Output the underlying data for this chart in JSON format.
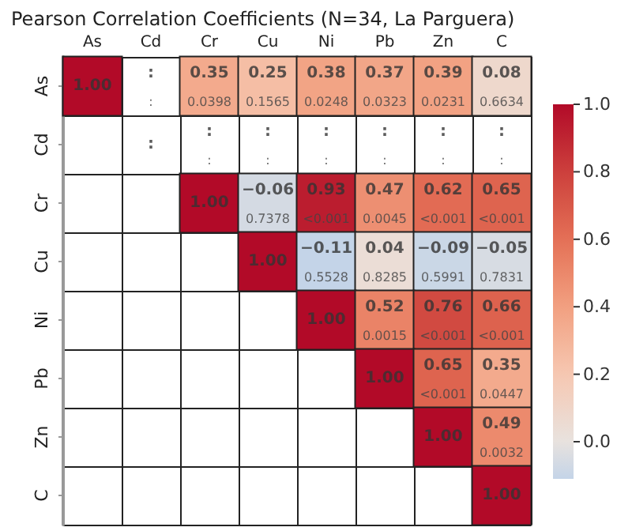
{
  "chart_data": {
    "type": "heatmap",
    "title": "Pearson Correlation Coefficients (N=34, La Parguera)",
    "categories": [
      "As",
      "Cd",
      "Cr",
      "Cu",
      "Ni",
      "Pb",
      "Zn",
      "C"
    ],
    "y_categories": [
      "As",
      "Cd",
      "Cr",
      "Cu",
      "Ni",
      "Pb",
      "Zn",
      "C"
    ],
    "cells": [
      [
        1.0,
        null,
        0.35,
        0.25,
        0.38,
        0.37,
        0.39,
        0.08
      ],
      [
        null,
        null,
        null,
        null,
        null,
        null,
        null,
        null
      ],
      [
        null,
        null,
        1.0,
        -0.06,
        0.93,
        0.47,
        0.62,
        0.65
      ],
      [
        null,
        null,
        null,
        1.0,
        -0.11,
        0.04,
        -0.09,
        -0.05
      ],
      [
        null,
        null,
        null,
        null,
        1.0,
        0.52,
        0.76,
        0.66
      ],
      [
        null,
        null,
        null,
        null,
        null,
        1.0,
        0.65,
        0.35
      ],
      [
        null,
        null,
        null,
        null,
        null,
        null,
        1.0,
        0.49
      ],
      [
        null,
        null,
        null,
        null,
        null,
        null,
        null,
        1.0
      ]
    ],
    "cell_labels": [
      [
        "1.00",
        ":\n:",
        "0.35\n0.0398",
        "0.25\n0.1565",
        "0.38\n0.0248",
        "0.37\n0.0323",
        "0.39\n0.0231",
        "0.08\n0.6634"
      ],
      [
        null,
        ":",
        ":\n:",
        ":\n:",
        ":\n:",
        ":\n:",
        ":\n:",
        ":\n:"
      ],
      [
        null,
        null,
        "1.00",
        "−0.06\n0.7378",
        "0.93\n<0.001",
        "0.47\n0.0045",
        "0.62\n<0.001",
        "0.65\n<0.001"
      ],
      [
        null,
        null,
        null,
        "1.00",
        "−0.11\n0.5528",
        "0.04\n0.8285",
        "−0.09\n0.5991",
        "−0.05\n0.7831"
      ],
      [
        null,
        null,
        null,
        null,
        "1.00",
        "0.52\n0.0015",
        "0.76\n<0.001",
        "0.66\n<0.001"
      ],
      [
        null,
        null,
        null,
        null,
        null,
        "1.00",
        "0.65\n<0.001",
        "0.35\n0.0447"
      ],
      [
        null,
        null,
        null,
        null,
        null,
        null,
        "1.00",
        "0.49\n0.0032"
      ],
      [
        null,
        null,
        null,
        null,
        null,
        null,
        null,
        "1.00"
      ]
    ],
    "clim": [
      -0.11,
      1.0
    ],
    "cticks": [
      {
        "value": 0,
        "label": "0.0"
      },
      0.2,
      0.4,
      0.6,
      0.8,
      {
        "value": 1,
        "label": "1.0"
      }
    ]
  }
}
